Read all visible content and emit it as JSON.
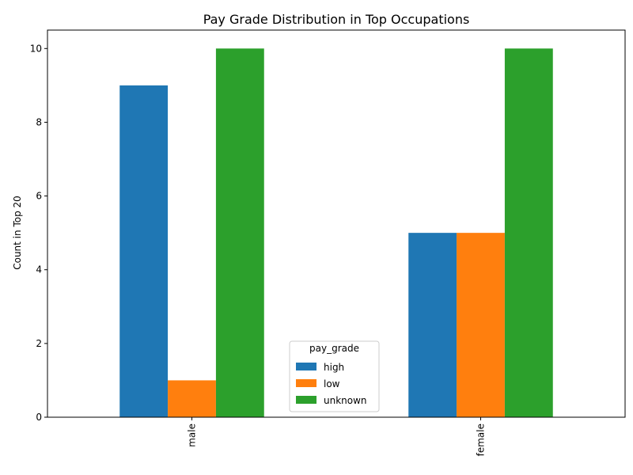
{
  "chart_data": {
    "type": "bar",
    "title": "Pay Grade Distribution in Top Occupations",
    "xlabel": "",
    "ylabel": "Count in Top 20",
    "categories": [
      "male",
      "female"
    ],
    "series": [
      {
        "name": "high",
        "values": [
          9,
          5
        ],
        "color": "#1f77b4"
      },
      {
        "name": "low",
        "values": [
          1,
          5
        ],
        "color": "#ff7f0e"
      },
      {
        "name": "unknown",
        "values": [
          10,
          10
        ],
        "color": "#2ca02c"
      }
    ],
    "ylim": [
      0,
      10.5
    ],
    "yticks": [
      0,
      2,
      4,
      6,
      8,
      10
    ],
    "grid": false,
    "legend": {
      "title": "pay_grade",
      "placement": "lower-center"
    }
  }
}
